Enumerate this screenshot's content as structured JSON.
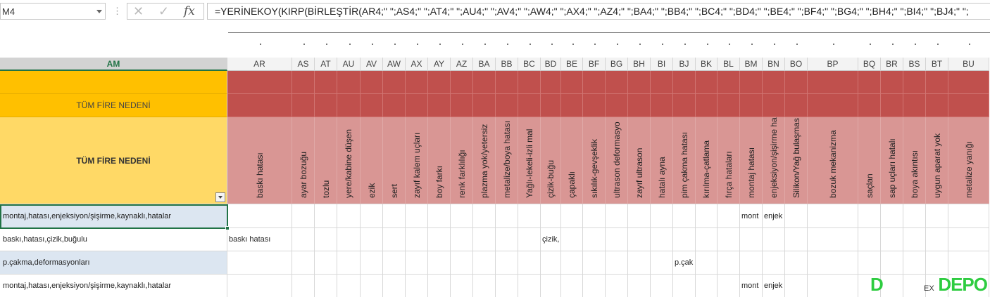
{
  "formula_bar": {
    "name_box": "M4",
    "formula": "=YERİNEKOY(KIRP(BİRLEŞTİR(AR4;\" \";AS4;\" \";AT4;\" \";AU4;\" \";AV4;\" \";AW4;\" \";AX4;\" \";AZ4;\" \";BA4;\" \";BB4;\" \";BC4;\" \";BD4;\" \";BE4;\" \";BF4;\" \";BG4;\" \";BH4;\" \";BI4;\" \";BJ4;\" \";"
  },
  "am_column": {
    "header": "AM",
    "row2_label": "TÜM FİRE NEDENİ",
    "row3_label": "TÜM FİRE NEDENİ"
  },
  "columns": [
    {
      "id": "AR",
      "label": "baskı hatası"
    },
    {
      "id": "AS",
      "label": "ayar bozuğu"
    },
    {
      "id": "AT",
      "label": "tozlu"
    },
    {
      "id": "AU",
      "label": "yere/kabine düşen"
    },
    {
      "id": "AV",
      "label": "ezik"
    },
    {
      "id": "AW",
      "label": "sert"
    },
    {
      "id": "AX",
      "label": "zayıf kalem uçları"
    },
    {
      "id": "AY",
      "label": "boy farkı"
    },
    {
      "id": "AZ",
      "label": "renk farklılığı"
    },
    {
      "id": "BA",
      "label": "plazma yok/yetersiz"
    },
    {
      "id": "BB",
      "label": "metalize/boya hatası"
    },
    {
      "id": "BC",
      "label": "Yağlı-lekeli-izli mal"
    },
    {
      "id": "BD",
      "label": "çizik-buğu"
    },
    {
      "id": "BE",
      "label": "çapaklı"
    },
    {
      "id": "BF",
      "label": "sıkılık-gevşeklik"
    },
    {
      "id": "BG",
      "label": "ultrason deformasyo"
    },
    {
      "id": "BH",
      "label": "zayıf ultrason"
    },
    {
      "id": "BI",
      "label": "hatalı ayna"
    },
    {
      "id": "BJ",
      "label": "pim çakma hatası"
    },
    {
      "id": "BK",
      "label": "kırılma-çatlama"
    },
    {
      "id": "BL",
      "label": "fırça hataları"
    },
    {
      "id": "BM",
      "label": "montaj hatası"
    },
    {
      "id": "BN",
      "label": "enjeksiyon/şişirme ha"
    },
    {
      "id": "BO",
      "label": "Silikon/Yağ bulaşmas"
    },
    {
      "id": "BP",
      "label": "bozuk mekanizma"
    },
    {
      "id": "BQ",
      "label": "saçlan"
    },
    {
      "id": "BR",
      "label": "sap uçları hatalı"
    },
    {
      "id": "BS",
      "label": "boya akıntısı"
    },
    {
      "id": "BT",
      "label": "uygun aparat yok"
    },
    {
      "id": "BU",
      "label": "metalize yanığı"
    }
  ],
  "rows": [
    {
      "am": "montaj,hatası,enjeksiyon/şişirme,kaynaklı,hatalar",
      "cells": {
        "BM": "mont",
        "BN": "enjek"
      }
    },
    {
      "am": "baskı,hatası,çizik,buğulu",
      "cells": {
        "AR": "baskı hatası",
        "BD": "çizik,"
      }
    },
    {
      "am": "p.çakma,deformasyonları",
      "cells": {
        "BJ": "p.çak"
      }
    },
    {
      "am": "montaj,hatası,enjeksiyon/şişirme,kaynaklı,hatalar",
      "cells": {
        "BM": "mont",
        "BN": "enjek"
      }
    }
  ],
  "watermark": {
    "logo": "DEPO",
    "small": "EX"
  },
  "colors": {
    "header_gold": "#ffc000",
    "header_light_gold": "#ffd966",
    "red_header": "#c0504d",
    "pink_header": "#d99694",
    "row_blue": "#dce6f1",
    "excel_green": "#217346"
  }
}
